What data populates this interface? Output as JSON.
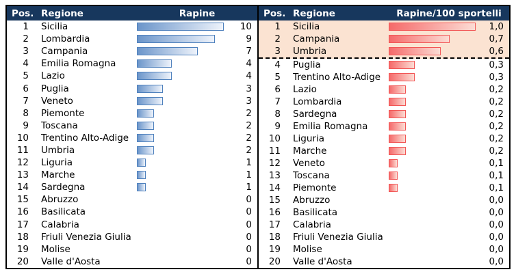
{
  "left_table": {
    "headers": {
      "pos": "Pos.",
      "region": "Regione",
      "value": "Rapine"
    },
    "max_value": 10,
    "rows": [
      {
        "pos": "1",
        "region": "Sicilia",
        "value": 10,
        "display": "10"
      },
      {
        "pos": "2",
        "region": "Lombardia",
        "value": 9,
        "display": "9"
      },
      {
        "pos": "3",
        "region": "Campania",
        "value": 7,
        "display": "7"
      },
      {
        "pos": "4",
        "region": "Emilia Romagna",
        "value": 4,
        "display": "4"
      },
      {
        "pos": "5",
        "region": "Lazio",
        "value": 4,
        "display": "4"
      },
      {
        "pos": "6",
        "region": "Puglia",
        "value": 3,
        "display": "3"
      },
      {
        "pos": "7",
        "region": "Veneto",
        "value": 3,
        "display": "3"
      },
      {
        "pos": "8",
        "region": "Piemonte",
        "value": 2,
        "display": "2"
      },
      {
        "pos": "9",
        "region": "Toscana",
        "value": 2,
        "display": "2"
      },
      {
        "pos": "10",
        "region": "Trentino Alto-Adige",
        "value": 2,
        "display": "2"
      },
      {
        "pos": "11",
        "region": "Umbria",
        "value": 2,
        "display": "2"
      },
      {
        "pos": "12",
        "region": "Liguria",
        "value": 1,
        "display": "1"
      },
      {
        "pos": "13",
        "region": "Marche",
        "value": 1,
        "display": "1"
      },
      {
        "pos": "14",
        "region": "Sardegna",
        "value": 1,
        "display": "1"
      },
      {
        "pos": "15",
        "region": "Abruzzo",
        "value": 0,
        "display": "0"
      },
      {
        "pos": "16",
        "region": "Basilicata",
        "value": 0,
        "display": "0"
      },
      {
        "pos": "17",
        "region": "Calabria",
        "value": 0,
        "display": "0"
      },
      {
        "pos": "18",
        "region": "Friuli Venezia Giulia",
        "value": 0,
        "display": "0"
      },
      {
        "pos": "19",
        "region": "Molise",
        "value": 0,
        "display": "0"
      },
      {
        "pos": "20",
        "region": "Valle d'Aosta",
        "value": 0,
        "display": "0"
      }
    ]
  },
  "right_table": {
    "headers": {
      "pos": "Pos.",
      "region": "Regione",
      "value": "Rapine/100 sportelli"
    },
    "max_value": 1.0,
    "rows": [
      {
        "pos": "1",
        "region": "Sicilia",
        "value": 1.0,
        "display": "1,0",
        "highlight": true
      },
      {
        "pos": "2",
        "region": "Campania",
        "value": 0.7,
        "display": "0,7",
        "highlight": true
      },
      {
        "pos": "3",
        "region": "Umbria",
        "value": 0.6,
        "display": "0,6",
        "highlight": true,
        "divider_below": true
      },
      {
        "pos": "4",
        "region": "Puglia",
        "value": 0.3,
        "display": "0,3"
      },
      {
        "pos": "5",
        "region": "Trentino Alto-Adige",
        "value": 0.3,
        "display": "0,3"
      },
      {
        "pos": "6",
        "region": "Lazio",
        "value": 0.2,
        "display": "0,2"
      },
      {
        "pos": "7",
        "region": "Lombardia",
        "value": 0.2,
        "display": "0,2"
      },
      {
        "pos": "8",
        "region": "Sardegna",
        "value": 0.2,
        "display": "0,2"
      },
      {
        "pos": "9",
        "region": "Emilia Romagna",
        "value": 0.2,
        "display": "0,2"
      },
      {
        "pos": "10",
        "region": "Liguria",
        "value": 0.2,
        "display": "0,2"
      },
      {
        "pos": "11",
        "region": "Marche",
        "value": 0.2,
        "display": "0,2"
      },
      {
        "pos": "12",
        "region": "Veneto",
        "value": 0.1,
        "display": "0,1"
      },
      {
        "pos": "13",
        "region": "Toscana",
        "value": 0.1,
        "display": "0,1"
      },
      {
        "pos": "14",
        "region": "Piemonte",
        "value": 0.1,
        "display": "0,1"
      },
      {
        "pos": "15",
        "region": "Abruzzo",
        "value": 0,
        "display": "0,0"
      },
      {
        "pos": "16",
        "region": "Basilicata",
        "value": 0,
        "display": "0,0"
      },
      {
        "pos": "17",
        "region": "Calabria",
        "value": 0,
        "display": "0,0"
      },
      {
        "pos": "18",
        "region": "Friuli Venezia Giulia",
        "value": 0,
        "display": "0,0"
      },
      {
        "pos": "19",
        "region": "Molise",
        "value": 0,
        "display": "0,0"
      },
      {
        "pos": "20",
        "region": "Valle d'Aosta",
        "value": 0,
        "display": "0,0"
      }
    ]
  },
  "colors": {
    "header_bg": "#17375d",
    "header_text": "#ffffff",
    "table_border": "#000000",
    "divider_dash": "#000000",
    "highlight_bg": "#fbe3d2",
    "blue_border": "#4f81bd",
    "blue_left": "#6b95ca",
    "blue_right": "#eef3fb",
    "red_border": "#f25555",
    "red_left": "#f56a6a",
    "red_right": "#fcdcd4"
  },
  "chart_data": [
    {
      "type": "bar",
      "orientation": "horizontal",
      "title": "Rapine",
      "categories": [
        "Sicilia",
        "Lombardia",
        "Campania",
        "Emilia Romagna",
        "Lazio",
        "Puglia",
        "Veneto",
        "Piemonte",
        "Toscana",
        "Trentino Alto-Adige",
        "Umbria",
        "Liguria",
        "Marche",
        "Sardegna",
        "Abruzzo",
        "Basilicata",
        "Calabria",
        "Friuli Venezia Giulia",
        "Molise",
        "Valle d'Aosta"
      ],
      "values": [
        10,
        9,
        7,
        4,
        4,
        3,
        3,
        2,
        2,
        2,
        2,
        1,
        1,
        1,
        0,
        0,
        0,
        0,
        0,
        0
      ],
      "xlabel": "",
      "ylabel": "Regione",
      "xlim": [
        0,
        10
      ],
      "grid": false,
      "legend": false,
      "bar_color": "blue gradient"
    },
    {
      "type": "bar",
      "orientation": "horizontal",
      "title": "Rapine/100 sportelli",
      "categories": [
        "Sicilia",
        "Campania",
        "Umbria",
        "Puglia",
        "Trentino Alto-Adige",
        "Lazio",
        "Lombardia",
        "Sardegna",
        "Emilia Romagna",
        "Liguria",
        "Marche",
        "Veneto",
        "Toscana",
        "Piemonte",
        "Abruzzo",
        "Basilicata",
        "Calabria",
        "Friuli Venezia Giulia",
        "Molise",
        "Valle d'Aosta"
      ],
      "values": [
        1.0,
        0.7,
        0.6,
        0.3,
        0.3,
        0.2,
        0.2,
        0.2,
        0.2,
        0.2,
        0.2,
        0.1,
        0.1,
        0.1,
        0.0,
        0.0,
        0.0,
        0.0,
        0.0,
        0.0
      ],
      "xlabel": "",
      "ylabel": "Regione",
      "xlim": [
        0,
        1.0
      ],
      "grid": false,
      "legend": false,
      "bar_color": "red gradient",
      "annotations": [
        "top 3 rows highlighted with peach background",
        "dashed separator below rank 3"
      ]
    }
  ]
}
